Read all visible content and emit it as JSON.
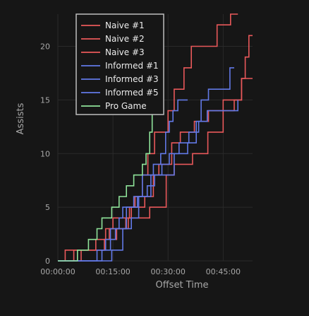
{
  "chart_data": {
    "type": "line",
    "step": true,
    "xlabel": "Offset Time",
    "ylabel": "Assists",
    "x_unit": "seconds offset",
    "xlim": [
      0,
      3180
    ],
    "ylim": [
      0,
      23
    ],
    "xticks": [
      {
        "value": 0,
        "label": "00:00:00"
      },
      {
        "value": 900,
        "label": "00:15:00"
      },
      {
        "value": 1800,
        "label": "00:30:00"
      },
      {
        "value": 2700,
        "label": "00:45:00"
      }
    ],
    "yticks": [
      0,
      5,
      10,
      15,
      20
    ],
    "grid": true,
    "legend": "top-left",
    "background": "#161616",
    "series": [
      {
        "name": "Naive #1",
        "color": "#e8585a",
        "points": [
          [
            0,
            0
          ],
          [
            120,
            1
          ],
          [
            760,
            2
          ],
          [
            840,
            3
          ],
          [
            1110,
            4
          ],
          [
            1170,
            5
          ],
          [
            1260,
            6
          ],
          [
            1380,
            8
          ],
          [
            1470,
            10
          ],
          [
            1580,
            12
          ],
          [
            1800,
            14
          ],
          [
            1900,
            16
          ],
          [
            2060,
            18
          ],
          [
            2180,
            20
          ],
          [
            2600,
            22
          ],
          [
            2820,
            23
          ],
          [
            2940,
            23
          ]
        ]
      },
      {
        "name": "Naive #2",
        "color": "#e8585a",
        "points": [
          [
            0,
            0
          ],
          [
            260,
            1
          ],
          [
            620,
            2
          ],
          [
            960,
            3
          ],
          [
            1150,
            4
          ],
          [
            1500,
            5
          ],
          [
            1770,
            8
          ],
          [
            1900,
            9
          ],
          [
            2200,
            10
          ],
          [
            2450,
            12
          ],
          [
            2700,
            15
          ],
          [
            2800,
            15
          ],
          [
            3000,
            17
          ],
          [
            3060,
            19
          ],
          [
            3120,
            21
          ],
          [
            3180,
            21
          ]
        ]
      },
      {
        "name": "Naive #3",
        "color": "#e8585a",
        "points": [
          [
            0,
            0
          ],
          [
            380,
            1
          ],
          [
            780,
            3
          ],
          [
            900,
            4
          ],
          [
            1200,
            5
          ],
          [
            1420,
            6
          ],
          [
            1560,
            8
          ],
          [
            1650,
            9
          ],
          [
            1860,
            11
          ],
          [
            2000,
            12
          ],
          [
            2230,
            13
          ],
          [
            2460,
            14
          ],
          [
            2650,
            14
          ],
          [
            2880,
            15
          ],
          [
            3000,
            17
          ],
          [
            3180,
            17
          ]
        ]
      },
      {
        "name": "Informed #1",
        "color": "#6279e6",
        "points": [
          [
            0,
            0
          ],
          [
            640,
            1
          ],
          [
            780,
            2
          ],
          [
            860,
            3
          ],
          [
            1000,
            4
          ],
          [
            1060,
            5
          ],
          [
            1300,
            6
          ],
          [
            1460,
            7
          ],
          [
            1580,
            8
          ],
          [
            1900,
            10
          ],
          [
            2120,
            11
          ],
          [
            2260,
            13
          ],
          [
            2340,
            15
          ],
          [
            2460,
            16
          ],
          [
            2680,
            16
          ],
          [
            2810,
            18
          ],
          [
            2880,
            18
          ]
        ]
      },
      {
        "name": "Informed #3",
        "color": "#6279e6",
        "points": [
          [
            0,
            0
          ],
          [
            880,
            1
          ],
          [
            1060,
            3
          ],
          [
            1200,
            4
          ],
          [
            1320,
            6
          ],
          [
            1520,
            8
          ],
          [
            1700,
            9
          ],
          [
            1820,
            10
          ],
          [
            1980,
            11
          ],
          [
            2140,
            12
          ],
          [
            2300,
            13
          ],
          [
            2440,
            14
          ],
          [
            2600,
            14
          ],
          [
            2760,
            14
          ],
          [
            2940,
            15
          ]
        ]
      },
      {
        "name": "Informed #5",
        "color": "#6279e6",
        "points": [
          [
            0,
            0
          ],
          [
            720,
            1
          ],
          [
            860,
            2
          ],
          [
            940,
            3
          ],
          [
            1120,
            5
          ],
          [
            1240,
            6
          ],
          [
            1380,
            8
          ],
          [
            1560,
            9
          ],
          [
            1680,
            10
          ],
          [
            1760,
            12
          ],
          [
            1820,
            13
          ],
          [
            1880,
            14
          ],
          [
            1960,
            15
          ],
          [
            2120,
            15
          ]
        ]
      },
      {
        "name": "Pro Game",
        "color": "#8fe39a",
        "points": [
          [
            0,
            0
          ],
          [
            200,
            0
          ],
          [
            320,
            1
          ],
          [
            500,
            2
          ],
          [
            640,
            3
          ],
          [
            720,
            4
          ],
          [
            880,
            5
          ],
          [
            1000,
            6
          ],
          [
            1120,
            7
          ],
          [
            1240,
            8
          ],
          [
            1380,
            9
          ],
          [
            1440,
            10
          ],
          [
            1500,
            12
          ],
          [
            1540,
            14
          ],
          [
            1560,
            14
          ]
        ]
      }
    ]
  }
}
